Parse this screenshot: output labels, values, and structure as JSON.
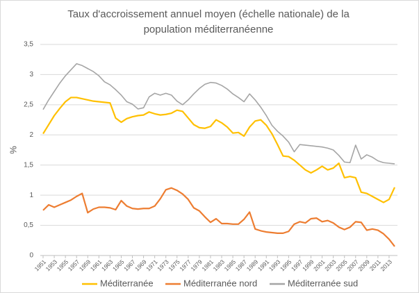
{
  "chart_data": {
    "type": "line",
    "title": "Taux d'accroissement annuel moyen (échelle nationale) de la population méditerranéenne",
    "y_label": "%",
    "x": [
      1951,
      1952,
      1953,
      1954,
      1955,
      1956,
      1957,
      1958,
      1959,
      1960,
      1961,
      1962,
      1963,
      1964,
      1965,
      1966,
      1967,
      1968,
      1969,
      1970,
      1971,
      1972,
      1973,
      1974,
      1975,
      1976,
      1977,
      1978,
      1979,
      1980,
      1981,
      1982,
      1983,
      1984,
      1985,
      1986,
      1987,
      1988,
      1989,
      1990,
      1991,
      1992,
      1993,
      1994,
      1995,
      1996,
      1997,
      1998,
      1999,
      2000,
      2001,
      2002,
      2003,
      2004,
      2005,
      2006,
      2007,
      2008,
      2009,
      2010,
      2011,
      2012,
      2013,
      2014
    ],
    "xlim": [
      1950.5,
      2014.5
    ],
    "xticks": [
      1951,
      1953,
      1955,
      1957,
      1959,
      1961,
      1963,
      1965,
      1967,
      1969,
      1971,
      1973,
      1975,
      1977,
      1979,
      1981,
      1983,
      1985,
      1987,
      1989,
      1991,
      1993,
      1995,
      1997,
      1999,
      2001,
      2003,
      2005,
      2007,
      2009,
      2011,
      2013
    ],
    "ylim": [
      0,
      3.5
    ],
    "yticks": [
      0,
      {
        "value": 0.5,
        "label": "0,5"
      },
      1,
      {
        "value": 1.5,
        "label": "1,5"
      },
      2,
      {
        "value": 2.5,
        "label": "2,5"
      },
      3,
      {
        "value": 3.5,
        "label": "3,5"
      }
    ],
    "grid": true,
    "legend": "bottom",
    "series": [
      {
        "name": "Méditerranée",
        "color": "#FFC000",
        "values": [
          2.02,
          2.17,
          2.32,
          2.44,
          2.55,
          2.62,
          2.62,
          2.6,
          2.58,
          2.56,
          2.55,
          2.54,
          2.53,
          2.28,
          2.21,
          2.27,
          2.3,
          2.32,
          2.33,
          2.38,
          2.35,
          2.33,
          2.34,
          2.36,
          2.41,
          2.39,
          2.28,
          2.17,
          2.12,
          2.11,
          2.14,
          2.25,
          2.2,
          2.13,
          2.03,
          2.04,
          1.98,
          2.13,
          2.23,
          2.25,
          2.16,
          2.02,
          1.84,
          1.65,
          1.64,
          1.58,
          1.5,
          1.42,
          1.37,
          1.42,
          1.48,
          1.42,
          1.45,
          1.53,
          1.29,
          1.31,
          1.29,
          1.05,
          1.03,
          0.98,
          0.93,
          0.88,
          0.93,
          1.13
        ]
      },
      {
        "name": "Méditerranée nord",
        "color": "#ED7D31",
        "values": [
          0.75,
          0.84,
          0.8,
          0.84,
          0.88,
          0.92,
          0.98,
          1.03,
          0.71,
          0.77,
          0.8,
          0.8,
          0.79,
          0.76,
          0.91,
          0.82,
          0.78,
          0.77,
          0.78,
          0.78,
          0.82,
          0.94,
          1.09,
          1.12,
          1.08,
          1.02,
          0.93,
          0.79,
          0.74,
          0.64,
          0.55,
          0.61,
          0.53,
          0.53,
          0.52,
          0.52,
          0.6,
          0.72,
          0.44,
          0.41,
          0.39,
          0.38,
          0.37,
          0.37,
          0.4,
          0.52,
          0.56,
          0.54,
          0.61,
          0.62,
          0.56,
          0.58,
          0.54,
          0.47,
          0.43,
          0.47,
          0.56,
          0.55,
          0.42,
          0.44,
          0.42,
          0.36,
          0.27,
          0.15
        ]
      },
      {
        "name": "Méditerranée sud",
        "color": "#A5A5A5",
        "values": [
          2.42,
          2.58,
          2.72,
          2.86,
          2.98,
          3.08,
          3.18,
          3.15,
          3.1,
          3.05,
          2.98,
          2.88,
          2.83,
          2.75,
          2.66,
          2.55,
          2.51,
          2.43,
          2.45,
          2.63,
          2.69,
          2.66,
          2.69,
          2.66,
          2.56,
          2.5,
          2.58,
          2.68,
          2.77,
          2.84,
          2.87,
          2.86,
          2.82,
          2.76,
          2.68,
          2.62,
          2.55,
          2.68,
          2.58,
          2.46,
          2.32,
          2.16,
          2.06,
          1.98,
          1.88,
          1.72,
          1.84,
          1.83,
          1.82,
          1.81,
          1.8,
          1.78,
          1.75,
          1.66,
          1.55,
          1.54,
          1.83,
          1.6,
          1.67,
          1.63,
          1.57,
          1.54,
          1.53,
          1.52
        ]
      }
    ]
  }
}
